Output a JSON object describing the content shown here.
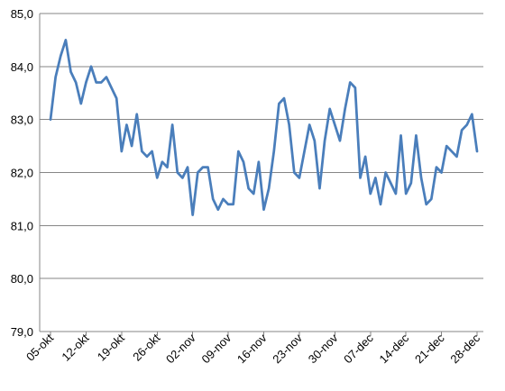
{
  "colors": {
    "line": "#4a7ebb",
    "grid": "#868686",
    "axis": "#868686",
    "text": "#000000"
  },
  "chart_data": {
    "type": "line",
    "title": "",
    "xlabel": "",
    "ylabel": "",
    "ylim": [
      79.0,
      85.0
    ],
    "yticks": [
      "79,0",
      "80,0",
      "81,0",
      "82,0",
      "83,0",
      "84,0",
      "85,0"
    ],
    "xticks": [
      "05-okt",
      "12-okt",
      "19-okt",
      "26-okt",
      "02-nov",
      "09-nov",
      "16-nov",
      "23-nov",
      "30-nov",
      "07-dec",
      "14-dec",
      "21-dec",
      "28-dec"
    ],
    "grid": "horizontal",
    "legend": "none",
    "series": [
      {
        "values": [
          83.0,
          83.8,
          84.2,
          84.5,
          83.9,
          83.7,
          83.3,
          83.7,
          84.0,
          83.7,
          83.7,
          83.8,
          83.6,
          83.4,
          82.4,
          82.9,
          82.5,
          83.1,
          82.4,
          82.3,
          82.4,
          81.9,
          82.2,
          82.1,
          82.9,
          82.0,
          81.9,
          82.1,
          81.2,
          82.0,
          82.1,
          82.1,
          81.5,
          81.3,
          81.5,
          81.4,
          81.4,
          82.4,
          82.2,
          81.7,
          81.6,
          82.2,
          81.3,
          81.7,
          82.4,
          83.3,
          83.4,
          82.9,
          82.0,
          81.9,
          82.4,
          82.9,
          82.6,
          81.7,
          82.6,
          83.2,
          82.9,
          82.6,
          83.2,
          83.7,
          83.6,
          81.9,
          82.3,
          81.6,
          81.9,
          81.4,
          82.0,
          81.8,
          81.6,
          82.7,
          81.6,
          81.8,
          82.7,
          81.9,
          81.4,
          81.5,
          82.1,
          82.0,
          82.5,
          82.4,
          82.3,
          82.8,
          82.9,
          83.1,
          82.4
        ]
      }
    ]
  }
}
